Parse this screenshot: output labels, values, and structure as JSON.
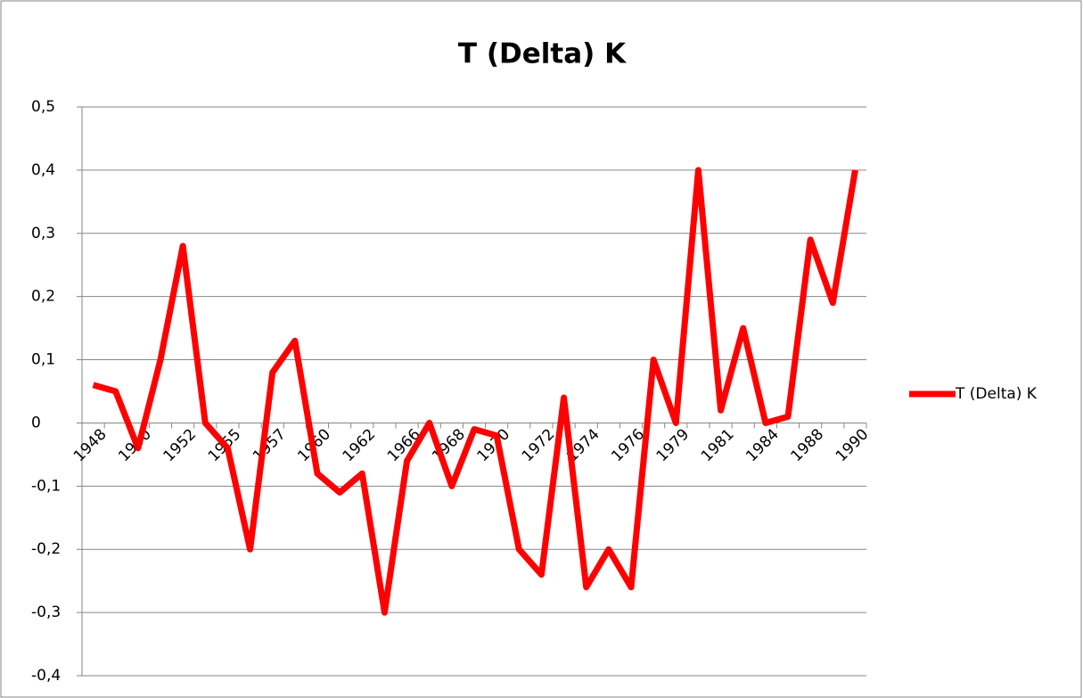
{
  "chart_data": {
    "type": "line",
    "title": "T (Delta) K",
    "categories": [
      "1948",
      null,
      "1950",
      null,
      "1952",
      null,
      "1955",
      null,
      "1957",
      null,
      "1960",
      null,
      "1962",
      null,
      "1966",
      null,
      "1968",
      null,
      "1970",
      null,
      "1972",
      null,
      "1974",
      null,
      "1976",
      null,
      "1979",
      null,
      "1981",
      null,
      "1984",
      null,
      "1988",
      null,
      "1990"
    ],
    "series": [
      {
        "name": "T (Delta) K",
        "color": "#ff0000",
        "values": [
          0.06,
          0.05,
          -0.04,
          0.1,
          0.28,
          0.0,
          -0.04,
          -0.2,
          0.08,
          0.13,
          -0.08,
          -0.11,
          -0.08,
          -0.3,
          -0.06,
          0.0,
          -0.1,
          -0.01,
          -0.02,
          -0.2,
          -0.24,
          0.04,
          -0.26,
          -0.2,
          -0.26,
          0.1,
          0.0,
          0.4,
          0.02,
          0.15,
          0.0,
          0.01,
          0.29,
          0.19,
          0.4
        ]
      }
    ],
    "ylim": [
      -0.4,
      0.5
    ],
    "yticks": [
      {
        "value": -0.4,
        "label": "-0,4"
      },
      {
        "value": -0.3,
        "label": "-0,3"
      },
      {
        "value": -0.2,
        "label": "-0,2"
      },
      {
        "value": -0.1,
        "label": "-0,1"
      },
      0,
      {
        "value": 0.1,
        "label": "0,1"
      },
      {
        "value": 0.2,
        "label": "0,2"
      },
      {
        "value": 0.3,
        "label": "0,3"
      },
      {
        "value": 0.4,
        "label": "0,4"
      },
      {
        "value": 0.5,
        "label": "0,5"
      }
    ],
    "grid": true,
    "legend": "right"
  }
}
